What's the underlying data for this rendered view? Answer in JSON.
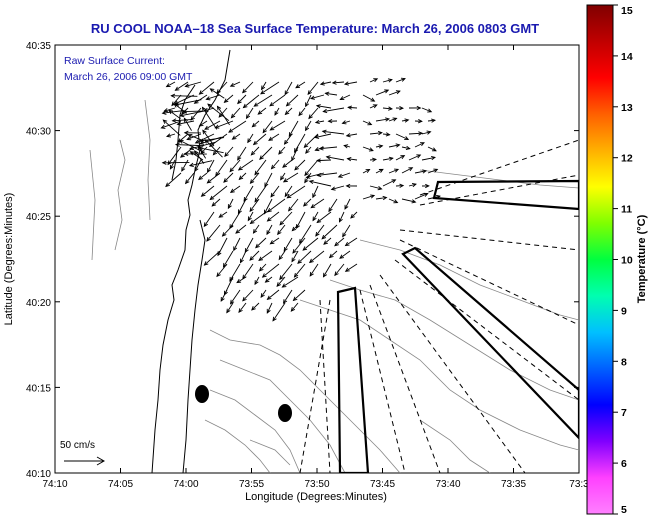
{
  "title": "RU COOL   NOAA–18  Sea Surface Temperature:  March 26, 2006 0803 GMT",
  "overlay": {
    "line1": "Raw Surface Current:",
    "line2": "March 26, 2006 09:00 GMT"
  },
  "axes": {
    "xlabel": "Longitude (Degrees:Minutes)",
    "ylabel": "Latitude (Degrees:Minutes)",
    "xticks": [
      "74:10",
      "74:05",
      "74:00",
      "73:55",
      "73:50",
      "73:45",
      "73:40",
      "73:35",
      "73:3"
    ],
    "yticks": [
      "40:35",
      "40:30",
      "40:25",
      "40:20",
      "40:15",
      "40:10"
    ]
  },
  "scale": {
    "label": "50 cm/s"
  },
  "colorbar": {
    "label": "Temperature (°C)",
    "ticks": [
      "5",
      "6",
      "7",
      "8",
      "9",
      "10",
      "11",
      "12",
      "13",
      "14",
      "15"
    ],
    "min": 5,
    "max": 15,
    "colors": [
      "#ff80ff",
      "#ff40ff",
      "#8000ff",
      "#0000ff",
      "#0060ff",
      "#00c0ff",
      "#00ffb0",
      "#00ff40",
      "#80ff00",
      "#ffff00",
      "#ffb000",
      "#ff6000",
      "#ff0000",
      "#c00000",
      "#800000"
    ]
  },
  "currents": {
    "columns": 20,
    "rows": 18
  }
}
